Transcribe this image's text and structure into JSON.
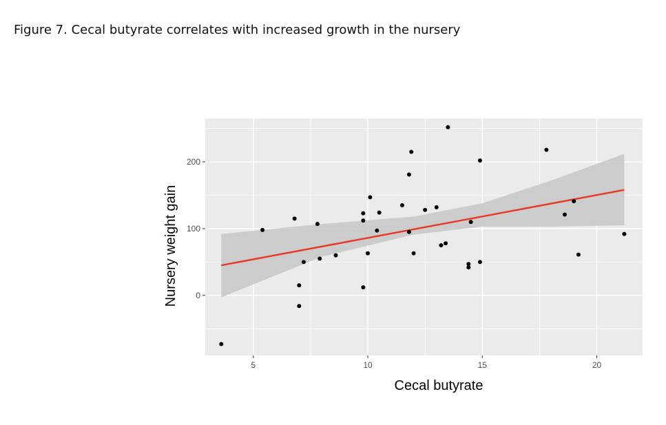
{
  "figure": {
    "caption": "Figure 7. Cecal butyrate correlates with increased growth in the nursery"
  },
  "chart_data": {
    "type": "scatter",
    "title": "",
    "xlabel": "Cecal butyrate",
    "ylabel": "Nursery weight gain",
    "xlim": [
      2.9,
      22.0
    ],
    "ylim": [
      -90,
      265
    ],
    "x_ticks": [
      5,
      10,
      15,
      20
    ],
    "y_ticks": [
      0,
      100,
      200
    ],
    "grid": true,
    "legend": "none",
    "colors": {
      "panel_background": "#ebebeb",
      "grid": "#ffffff",
      "points": "#000000",
      "fit_line": "#e8392b",
      "confidence_band": "#c9c9c9"
    },
    "points": [
      {
        "x": 3.6,
        "y": -73
      },
      {
        "x": 5.4,
        "y": 98
      },
      {
        "x": 6.8,
        "y": 115
      },
      {
        "x": 7.0,
        "y": 15
      },
      {
        "x": 7.0,
        "y": -16
      },
      {
        "x": 7.2,
        "y": 50
      },
      {
        "x": 7.8,
        "y": 107
      },
      {
        "x": 7.9,
        "y": 55
      },
      {
        "x": 8.6,
        "y": 60
      },
      {
        "x": 9.8,
        "y": 123
      },
      {
        "x": 9.8,
        "y": 112
      },
      {
        "x": 9.8,
        "y": 12
      },
      {
        "x": 10.0,
        "y": 63
      },
      {
        "x": 10.1,
        "y": 147
      },
      {
        "x": 10.4,
        "y": 97
      },
      {
        "x": 10.5,
        "y": 124
      },
      {
        "x": 11.5,
        "y": 135
      },
      {
        "x": 11.8,
        "y": 181
      },
      {
        "x": 11.9,
        "y": 215
      },
      {
        "x": 11.8,
        "y": 95
      },
      {
        "x": 12.0,
        "y": 63
      },
      {
        "x": 12.5,
        "y": 128
      },
      {
        "x": 13.0,
        "y": 132
      },
      {
        "x": 13.2,
        "y": 75
      },
      {
        "x": 13.4,
        "y": 78
      },
      {
        "x": 13.5,
        "y": 252
      },
      {
        "x": 14.4,
        "y": 47
      },
      {
        "x": 14.4,
        "y": 42
      },
      {
        "x": 14.5,
        "y": 110
      },
      {
        "x": 14.9,
        "y": 202
      },
      {
        "x": 14.9,
        "y": 50
      },
      {
        "x": 17.8,
        "y": 218
      },
      {
        "x": 18.6,
        "y": 121
      },
      {
        "x": 19.0,
        "y": 141
      },
      {
        "x": 19.2,
        "y": 61
      },
      {
        "x": 21.2,
        "y": 92
      }
    ],
    "fit": {
      "x": [
        3.6,
        21.2
      ],
      "y": [
        45,
        158
      ]
    },
    "confidence_band": {
      "x": [
        3.6,
        8.0,
        12.0,
        15.0,
        18.0,
        21.2
      ],
      "lower": [
        -3,
        58,
        91,
        103,
        103,
        105
      ],
      "upper": [
        92,
        107,
        118,
        138,
        172,
        212
      ]
    }
  }
}
